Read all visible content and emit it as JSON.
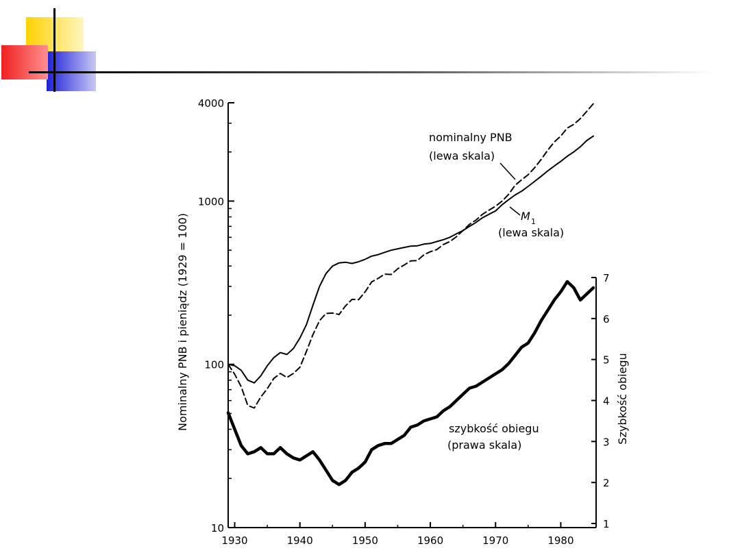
{
  "decoration": {
    "colors": {
      "yellow": "#ffd200",
      "red": "#f02020",
      "blue": "#1e20d8",
      "line": "#000000"
    }
  },
  "chart_data": {
    "type": "line",
    "left_axis": {
      "label": "Nominalny  PNB i pieniądz (1929 = 100)",
      "scale": "log",
      "range": [
        10,
        4000
      ],
      "ticks": [
        10,
        100,
        1000,
        4000
      ],
      "tick_labels": [
        "10",
        "100",
        "1000",
        "4000"
      ],
      "minor_ticks": [
        20,
        30,
        40,
        50,
        60,
        70,
        80,
        90,
        200,
        300,
        400,
        500,
        600,
        700,
        800,
        900,
        2000,
        3000
      ]
    },
    "right_axis": {
      "label": "Szybkość obiegu",
      "scale": "linear",
      "range": [
        1,
        7
      ],
      "ticks": [
        1,
        2,
        3,
        4,
        5,
        6,
        7
      ],
      "tick_labels": [
        "1",
        "2",
        "3",
        "4",
        "5",
        "6",
        "7"
      ]
    },
    "x_axis": {
      "range": [
        1929,
        1985
      ],
      "ticks": [
        1930,
        1940,
        1950,
        1960,
        1970,
        1980
      ],
      "tick_labels": [
        "1930",
        "1940",
        "1950",
        "1960",
        "1970",
        "1980"
      ],
      "minor_ticks": [
        1935,
        1945,
        1955,
        1965,
        1975
      ]
    },
    "series": [
      {
        "id": "pnb",
        "style": "dashed",
        "axis": "left",
        "x": [
          1929,
          1930,
          1931,
          1932,
          1933,
          1934,
          1935,
          1936,
          1937,
          1938,
          1939,
          1940,
          1941,
          1942,
          1943,
          1944,
          1945,
          1946,
          1947,
          1948,
          1949,
          1950,
          1951,
          1952,
          1953,
          1954,
          1955,
          1956,
          1957,
          1958,
          1959,
          1960,
          1961,
          1962,
          1963,
          1964,
          1965,
          1966,
          1967,
          1968,
          1969,
          1970,
          1971,
          1972,
          1973,
          1974,
          1975,
          1976,
          1977,
          1978,
          1979,
          1980,
          1981,
          1982,
          1983,
          1984,
          1985
        ],
        "values": [
          100,
          87,
          73,
          56,
          54,
          63,
          71,
          82,
          88,
          83,
          88,
          96,
          120,
          152,
          185,
          205,
          206,
          202,
          228,
          250,
          249,
          278,
          320,
          336,
          357,
          355,
          385,
          406,
          430,
          432,
          468,
          490,
          505,
          542,
          565,
          605,
          660,
          720,
          765,
          830,
          880,
          930,
          1000,
          1100,
          1250,
          1350,
          1450,
          1600,
          1800,
          2050,
          2300,
          2500,
          2800,
          2950,
          3200,
          3550,
          3950
        ]
      },
      {
        "id": "m1",
        "style": "solid",
        "axis": "left",
        "x": [
          1929,
          1930,
          1931,
          1932,
          1933,
          1934,
          1935,
          1936,
          1937,
          1938,
          1939,
          1940,
          1941,
          1942,
          1943,
          1944,
          1945,
          1946,
          1947,
          1948,
          1949,
          1950,
          1951,
          1952,
          1953,
          1954,
          1955,
          1956,
          1957,
          1958,
          1959,
          1960,
          1961,
          1962,
          1963,
          1964,
          1965,
          1966,
          1967,
          1968,
          1969,
          1970,
          1971,
          1972,
          1973,
          1974,
          1975,
          1976,
          1977,
          1978,
          1979,
          1980,
          1981,
          1982,
          1983,
          1984,
          1985
        ],
        "values": [
          100,
          98,
          92,
          80,
          77,
          85,
          98,
          110,
          118,
          115,
          125,
          145,
          175,
          230,
          300,
          360,
          400,
          418,
          422,
          415,
          425,
          440,
          460,
          470,
          485,
          500,
          510,
          520,
          530,
          532,
          545,
          550,
          565,
          580,
          600,
          630,
          660,
          700,
          740,
          790,
          830,
          870,
          950,
          1020,
          1090,
          1150,
          1230,
          1320,
          1420,
          1530,
          1640,
          1750,
          1880,
          2000,
          2150,
          2350,
          2500
        ]
      },
      {
        "id": "velocity",
        "style": "thick",
        "axis": "right",
        "x": [
          1929,
          1930,
          1931,
          1932,
          1933,
          1934,
          1935,
          1936,
          1937,
          1938,
          1939,
          1940,
          1941,
          1942,
          1943,
          1944,
          1945,
          1946,
          1947,
          1948,
          1949,
          1950,
          1951,
          1952,
          1953,
          1954,
          1955,
          1956,
          1957,
          1958,
          1959,
          1960,
          1961,
          1962,
          1963,
          1964,
          1965,
          1966,
          1967,
          1968,
          1969,
          1970,
          1971,
          1972,
          1973,
          1974,
          1975,
          1976,
          1977,
          1978,
          1979,
          1980,
          1981,
          1982,
          1983,
          1984,
          1985
        ],
        "values": [
          3.7,
          3.3,
          2.9,
          2.7,
          2.75,
          2.85,
          2.7,
          2.7,
          2.85,
          2.7,
          2.6,
          2.55,
          2.65,
          2.75,
          2.55,
          2.3,
          2.05,
          1.95,
          2.05,
          2.25,
          2.35,
          2.5,
          2.8,
          2.9,
          2.95,
          2.95,
          3.05,
          3.15,
          3.35,
          3.4,
          3.5,
          3.55,
          3.6,
          3.75,
          3.85,
          4.0,
          4.15,
          4.3,
          4.35,
          4.45,
          4.55,
          4.65,
          4.75,
          4.9,
          5.1,
          5.3,
          5.4,
          5.65,
          5.95,
          6.2,
          6.45,
          6.65,
          6.9,
          6.75,
          6.45,
          6.6,
          6.75
        ]
      }
    ],
    "annotations": [
      {
        "id": "pnb_label",
        "lines": [
          "nominalny  PNB",
          "(lewa  skala)"
        ]
      },
      {
        "id": "m1_label",
        "lines": [
          "M",
          "(lewa  skala)"
        ],
        "subscript": "1"
      },
      {
        "id": "vel_label",
        "lines": [
          "szybkość  obiegu",
          "(prawa  skala)"
        ]
      }
    ]
  }
}
